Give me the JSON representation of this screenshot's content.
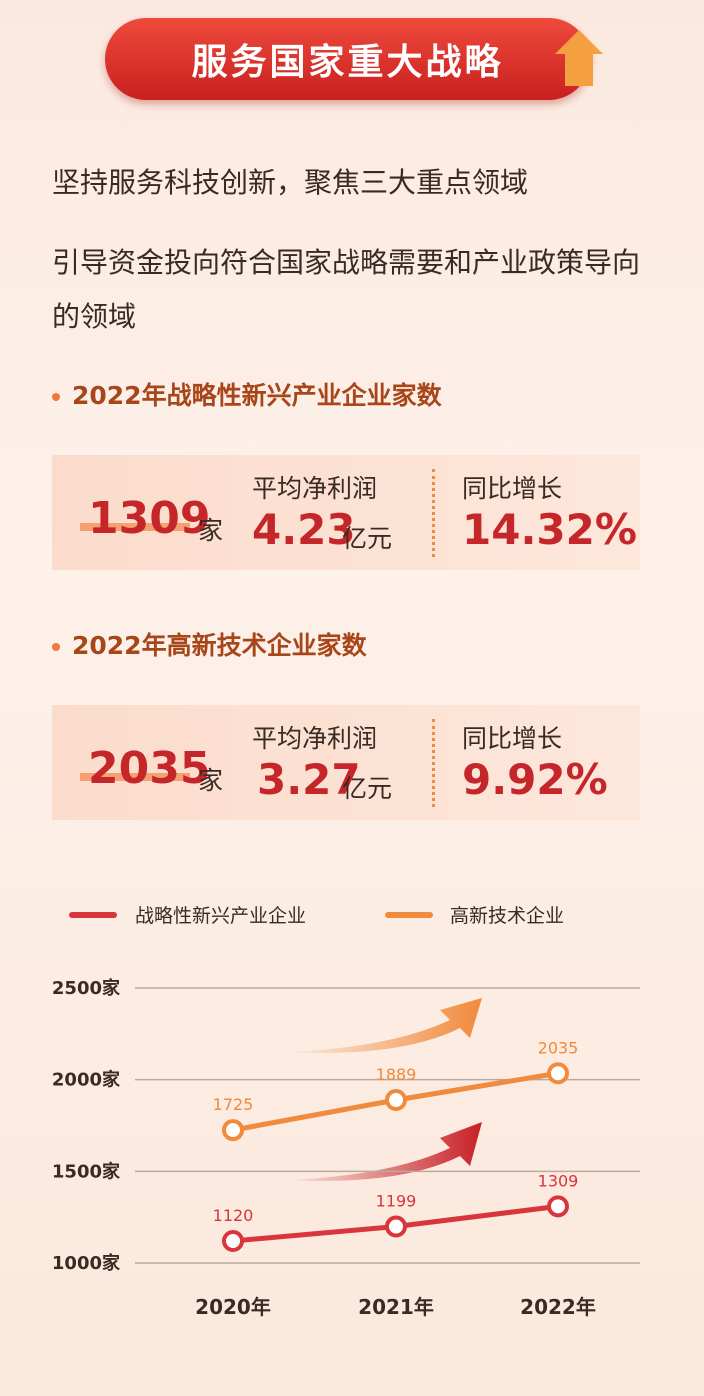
{
  "header": {
    "title": "服务国家重大战略"
  },
  "intro": [
    "坚持服务科技创新，聚焦三大重点领域",
    "引导资金投向符合国家战略需要和产业政策导向的领域"
  ],
  "stats": [
    {
      "title": "2022年战略性新兴产业企业家数",
      "count": "1309",
      "count_unit": "家",
      "profit_label": "平均净利润",
      "profit": "4.23",
      "profit_unit": "亿元",
      "growth_label": "同比增长",
      "growth": "14.32%"
    },
    {
      "title": "2022年高新技术企业家数",
      "count": "2035",
      "count_unit": "家",
      "profit_label": "平均净利润",
      "profit": "3.27",
      "profit_unit": "亿元",
      "growth_label": "同比增长",
      "growth": "9.92%"
    }
  ],
  "chart_data": {
    "type": "line",
    "categories": [
      "2020年",
      "2021年",
      "2022年"
    ],
    "series": [
      {
        "name": "战略性新兴产业企业",
        "color": "#d8363b",
        "values": [
          1120,
          1199,
          1309
        ]
      },
      {
        "name": "高新技术企业",
        "color": "#f08a3c",
        "values": [
          1725,
          1889,
          2035
        ]
      }
    ],
    "ylim": [
      1000,
      2500
    ],
    "yticks": [
      {
        "value": 1000,
        "label": "1000家"
      },
      {
        "value": 1500,
        "label": "1500家"
      },
      {
        "value": 2000,
        "label": "2000家"
      },
      {
        "value": 2500,
        "label": "2500家"
      }
    ],
    "grid": true
  }
}
